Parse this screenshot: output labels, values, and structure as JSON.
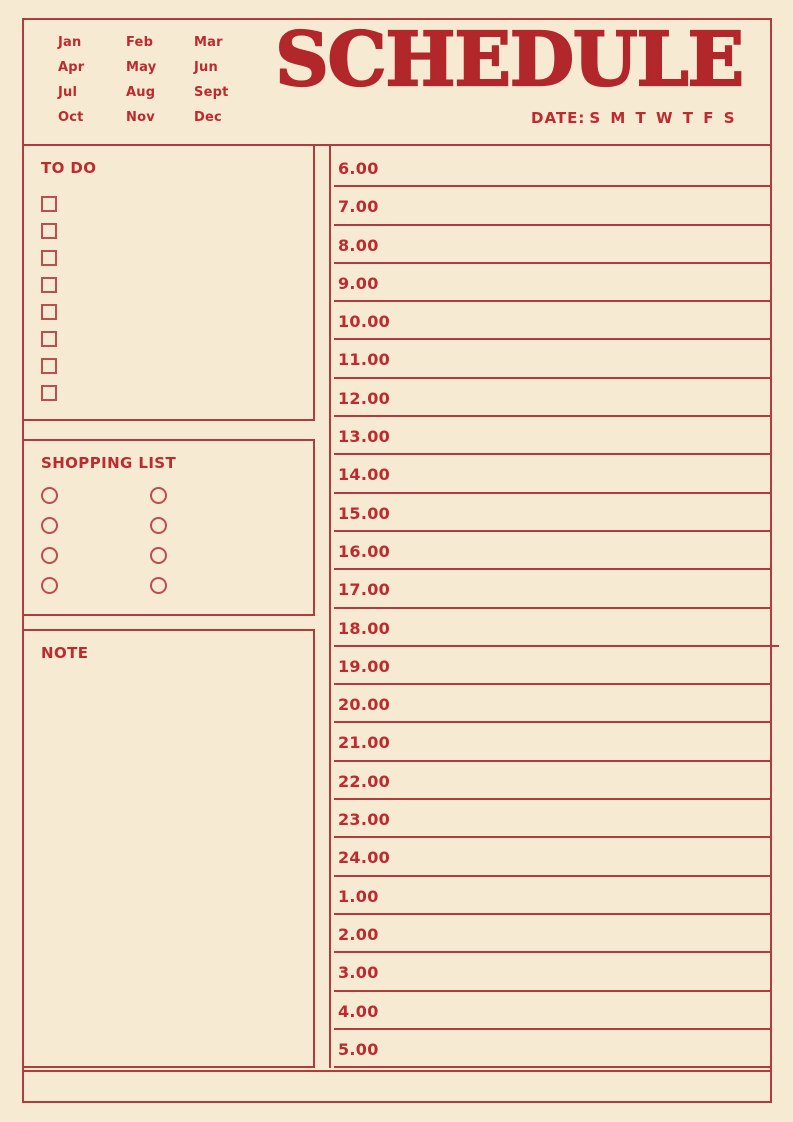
{
  "colors": {
    "background": "#f6ead3",
    "ink": "#bd2b2e",
    "title_ink": "#b2272a",
    "line": "#b23c3d",
    "marker_outline": "#bd4e4e"
  },
  "header": {
    "months": [
      "Jan",
      "Feb",
      "Mar",
      "Apr",
      "May",
      "Jun",
      "Jul",
      "Aug",
      "Sept",
      "Oct",
      "Nov",
      "Dec"
    ],
    "title": "SCHEDULE",
    "date_label": "DATE:",
    "days": "S M T W T F S"
  },
  "todo": {
    "label": "TO DO",
    "checkbox_count": 8
  },
  "shopping": {
    "label": "SHOPPING LIST",
    "circle_columns": 2,
    "circles_per_column": 4
  },
  "note": {
    "label": "NOTE"
  },
  "schedule": {
    "times": [
      "6.00",
      "7.00",
      "8.00",
      "9.00",
      "10.00",
      "11.00",
      "12.00",
      "13.00",
      "14.00",
      "15.00",
      "16.00",
      "17.00",
      "18.00",
      "19.00",
      "20.00",
      "21.00",
      "22.00",
      "23.00",
      "24.00",
      "1.00",
      "2.00",
      "3.00",
      "4.00",
      "5.00"
    ]
  }
}
